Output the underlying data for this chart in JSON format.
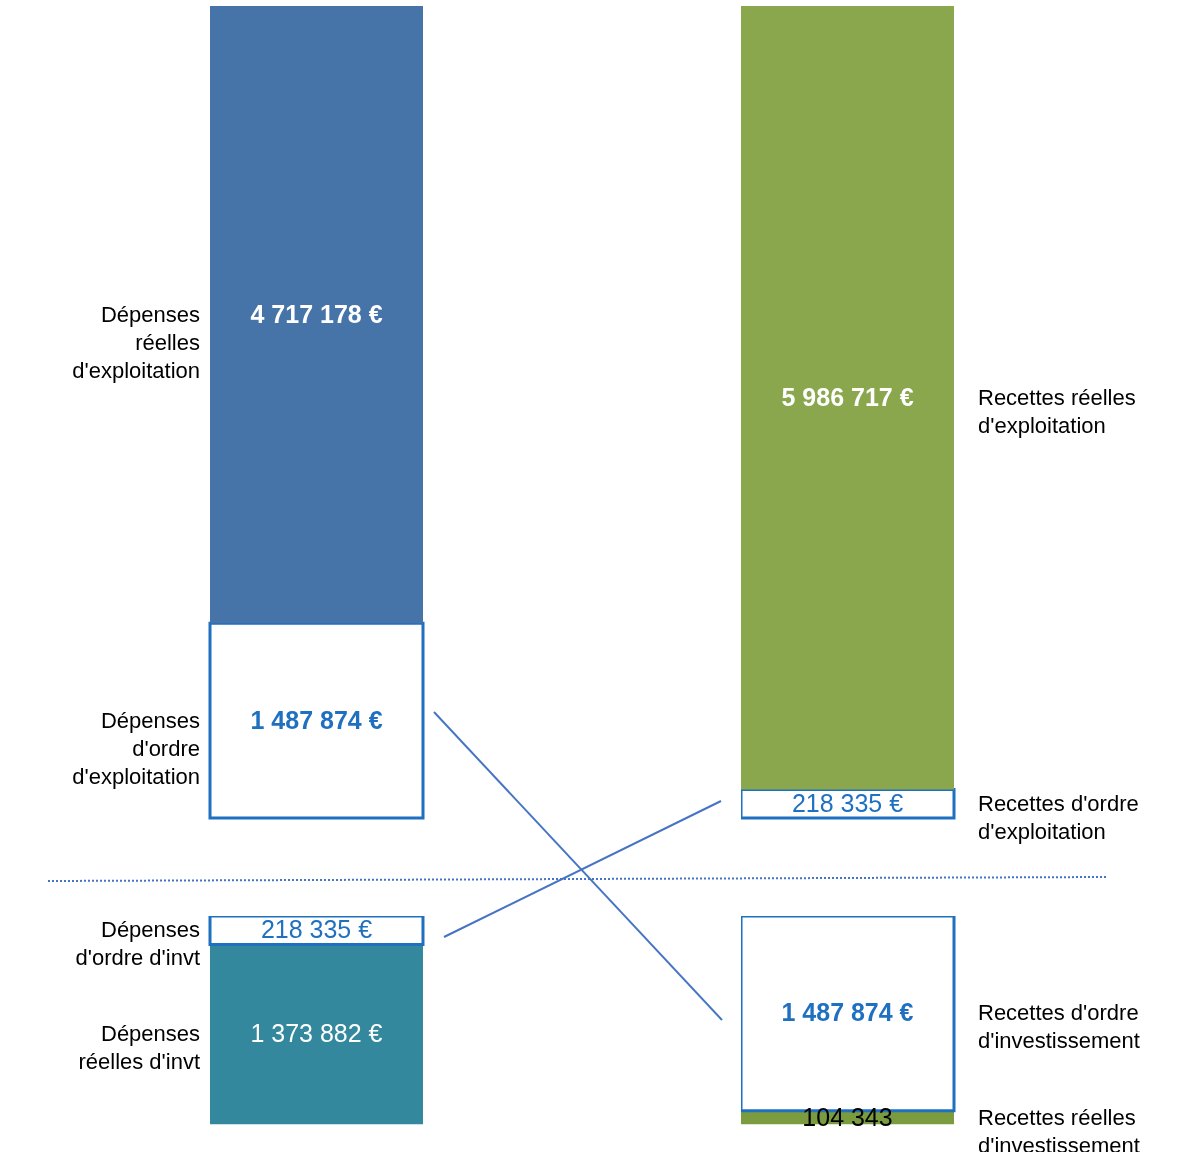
{
  "chart_data": [
    {
      "type": "bar",
      "stacked": true,
      "categories": [
        null
      ],
      "series": [
        {
          "name": "Dépenses d'ordre d'exploitation",
          "color": "#ffffff",
          "values": [
            1487874
          ],
          "value_labels": [
            "1 487 874 €"
          ]
        },
        {
          "name": "Dépenses réelles d'exploitation",
          "color": "#4674a8",
          "values": [
            4717178
          ],
          "value_labels": [
            "4 717 178 €"
          ]
        }
      ]
    },
    {
      "type": "bar",
      "stacked": true,
      "categories": [
        null
      ],
      "series": [
        {
          "name": "Recettes d'ordre d'exploitation",
          "color": "#ffffff",
          "values": [
            218335
          ],
          "value_labels": [
            "218 335 €"
          ]
        },
        {
          "name": "Recettes réelles d'exploitation",
          "color": "#8aa74e",
          "values": [
            5986717
          ],
          "value_labels": [
            "5 986 717 €"
          ]
        }
      ]
    },
    {
      "type": "bar",
      "stacked": true,
      "categories": [
        null
      ],
      "series": [
        {
          "name": "Dépenses réelles d'invt",
          "color": "#33889e",
          "values": [
            1373882
          ],
          "value_labels": [
            "1 373 882 €"
          ]
        },
        {
          "name": "Dépenses d'ordre d'invt",
          "color": "#ffffff",
          "values": [
            218335
          ],
          "value_labels": [
            "218 335 €"
          ]
        }
      ]
    },
    {
      "type": "bar",
      "stacked": true,
      "categories": [
        null
      ],
      "series": [
        {
          "name": "Recettes réelles d'investissement",
          "color": "#7a9c3e",
          "values": [
            104343
          ],
          "value_labels": [
            "104 343"
          ]
        },
        {
          "name": "Recettes d'ordre d'investissement",
          "color": "#ffffff",
          "values": [
            1487874
          ],
          "value_labels": [
            "1 487 874 €"
          ]
        }
      ]
    }
  ]
}
